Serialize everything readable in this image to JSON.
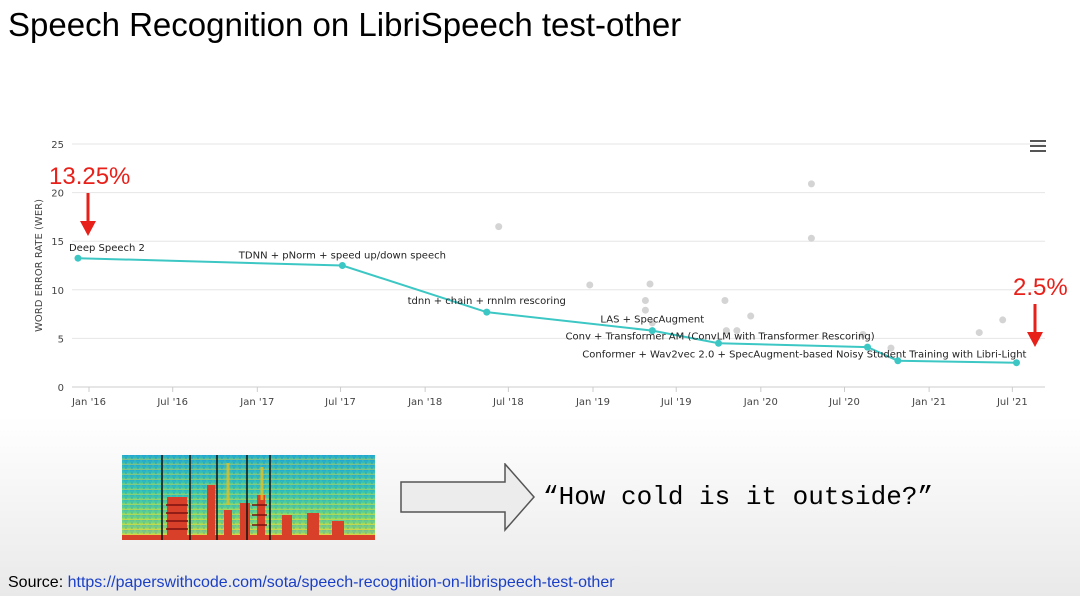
{
  "title": "Speech Recognition on LibriSpeech test-other",
  "menu_icon": "hamburger-menu-icon",
  "annotations": {
    "start_value": "13.25%",
    "end_value": "2.5%",
    "color": "#e8201a"
  },
  "illustration": {
    "spectrogram_icon": "spectrogram-image",
    "arrow_icon": "right-arrow-icon",
    "transcript": "“How cold is it outside?”"
  },
  "source": {
    "label": "Source: ",
    "url": "https://paperswithcode.com/sota/speech-recognition-on-librispeech-test-other"
  },
  "colors": {
    "sota_line": "#3cc7c4",
    "other_points": "#d4d4d4",
    "grid": "#e6e6e6"
  },
  "chart_data": {
    "type": "scatter",
    "ylabel": "WORD ERROR RATE (WER)",
    "xlabel": "",
    "ylim": [
      0,
      25
    ],
    "yticks": [
      0,
      5,
      10,
      15,
      20,
      25
    ],
    "xlim": [
      "2015-11-25",
      "2021-09-10"
    ],
    "xticks": [
      {
        "date": "2016-01-01",
        "label": "Jan '16"
      },
      {
        "date": "2016-07-01",
        "label": "Jul '16"
      },
      {
        "date": "2017-01-01",
        "label": "Jan '17"
      },
      {
        "date": "2017-07-01",
        "label": "Jul '17"
      },
      {
        "date": "2018-01-01",
        "label": "Jan '18"
      },
      {
        "date": "2018-07-01",
        "label": "Jul '18"
      },
      {
        "date": "2019-01-01",
        "label": "Jan '19"
      },
      {
        "date": "2019-07-01",
        "label": "Jul '19"
      },
      {
        "date": "2020-01-01",
        "label": "Jan '20"
      },
      {
        "date": "2020-07-01",
        "label": "Jul '20"
      },
      {
        "date": "2021-01-01",
        "label": "Jan '21"
      },
      {
        "date": "2021-07-01",
        "label": "Jul '21"
      }
    ],
    "grid": true,
    "series": [
      {
        "type": "line",
        "points": [
          {
            "x": "2015-12-08",
            "y": 13.25
          },
          {
            "x": "2017-07-05",
            "y": 12.5
          },
          {
            "x": "2018-05-15",
            "y": 7.7
          },
          {
            "x": "2019-05-10",
            "y": 5.8
          },
          {
            "x": "2019-10-01",
            "y": 4.5
          },
          {
            "x": "2020-08-20",
            "y": 4.1
          },
          {
            "x": "2020-10-25",
            "y": 2.7
          },
          {
            "x": "2021-07-10",
            "y": 2.5
          }
        ]
      },
      {
        "type": "scatter",
        "points": [
          {
            "x": "2018-06-10",
            "y": 16.5
          },
          {
            "x": "2018-12-25",
            "y": 10.5
          },
          {
            "x": "2019-04-25",
            "y": 8.9
          },
          {
            "x": "2019-04-25",
            "y": 7.9
          },
          {
            "x": "2019-05-05",
            "y": 10.6
          },
          {
            "x": "2019-05-10",
            "y": 6.6
          },
          {
            "x": "2019-10-15",
            "y": 8.9
          },
          {
            "x": "2019-10-18",
            "y": 5.8
          },
          {
            "x": "2019-11-10",
            "y": 5.8
          },
          {
            "x": "2019-12-10",
            "y": 7.3
          },
          {
            "x": "2020-04-20",
            "y": 20.9
          },
          {
            "x": "2020-04-20",
            "y": 15.3
          },
          {
            "x": "2020-08-10",
            "y": 5.4
          },
          {
            "x": "2020-10-10",
            "y": 4.0
          },
          {
            "x": "2021-04-20",
            "y": 5.6
          },
          {
            "x": "2021-06-10",
            "y": 6.9
          }
        ]
      }
    ],
    "labels": [
      {
        "text": "Deep Speech 2",
        "x": "2015-12-08",
        "y": 13.25
      },
      {
        "text": "TDNN + pNorm + speed up/down speech",
        "x": "2017-07-05",
        "y": 12.5
      },
      {
        "text": "tdnn + chain + rnnlm rescoring",
        "x": "2018-05-15",
        "y": 7.7
      },
      {
        "text": "LAS + SpecAugment",
        "x": "2019-05-10",
        "y": 5.8
      },
      {
        "text": "Conv + Transformer AM (ConvLM with Transformer Rescoring)",
        "x": "2019-10-01",
        "y": 4.5
      },
      {
        "text": "Conformer + Wav2vec 2.0 + SpecAugment-based Noisy Student Training with Libri-Light",
        "x": "2021-07-10",
        "y": 2.5
      }
    ]
  }
}
